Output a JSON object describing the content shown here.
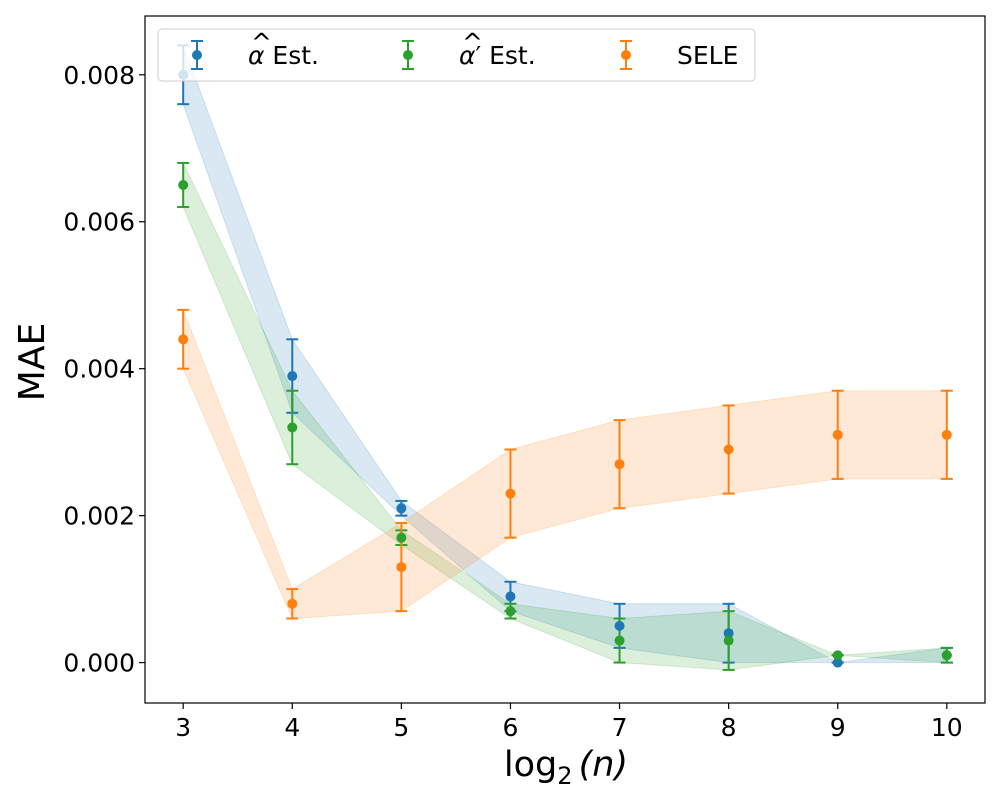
{
  "chart_data": {
    "type": "scatter",
    "title": "",
    "xlabel_text": "log",
    "xlabel_sub": "2",
    "xlabel_arg": "(n)",
    "ylabel": "MAE",
    "x": [
      3,
      4,
      5,
      6,
      7,
      8,
      9,
      10
    ],
    "xlim": [
      2.65,
      10.35
    ],
    "ylim": [
      -0.00055,
      0.0088
    ],
    "xticks": [
      3,
      4,
      5,
      6,
      7,
      8,
      9,
      10
    ],
    "yticks": [
      0.0,
      0.002,
      0.004,
      0.006,
      0.008
    ],
    "ytick_labels": [
      "0.000",
      "0.002",
      "0.004",
      "0.006",
      "0.008"
    ],
    "legend_position": "top-left",
    "series": [
      {
        "name": "α̂ Est.",
        "legend_base": "α",
        "legend_suffix": " Est.",
        "color": "#1f77b4",
        "values": [
          0.008,
          0.0039,
          0.0021,
          0.0009,
          0.0005,
          0.0004,
          0.0,
          0.0001
        ],
        "lower": [
          0.0076,
          0.0034,
          0.002,
          0.0007,
          0.0002,
          0.0,
          0.0,
          0.0
        ],
        "upper": [
          0.0084,
          0.0044,
          0.0022,
          0.0011,
          0.0008,
          0.0008,
          0.0,
          0.0002
        ]
      },
      {
        "name": "α̂′ Est.",
        "legend_base": "α",
        "legend_suffix": "′ Est.",
        "color": "#2ca02c",
        "values": [
          0.0065,
          0.0032,
          0.0017,
          0.0007,
          0.0003,
          0.0003,
          0.0001,
          0.0001
        ],
        "lower": [
          0.0062,
          0.0027,
          0.0016,
          0.0006,
          0.0,
          -0.0001,
          0.0001,
          0.0
        ],
        "upper": [
          0.0068,
          0.0037,
          0.0018,
          0.0008,
          0.0006,
          0.0007,
          0.0001,
          0.0002
        ]
      },
      {
        "name": "SELE",
        "legend_base": "SELE",
        "legend_suffix": "",
        "color": "#ff7f0e",
        "values": [
          0.0044,
          0.0008,
          0.0013,
          0.0023,
          0.0027,
          0.0029,
          0.0031,
          0.0031
        ],
        "lower": [
          0.004,
          0.0006,
          0.0007,
          0.0017,
          0.0021,
          0.0023,
          0.0025,
          0.0025
        ],
        "upper": [
          0.0048,
          0.001,
          0.0019,
          0.0029,
          0.0033,
          0.0035,
          0.0037,
          0.0037
        ]
      }
    ]
  }
}
